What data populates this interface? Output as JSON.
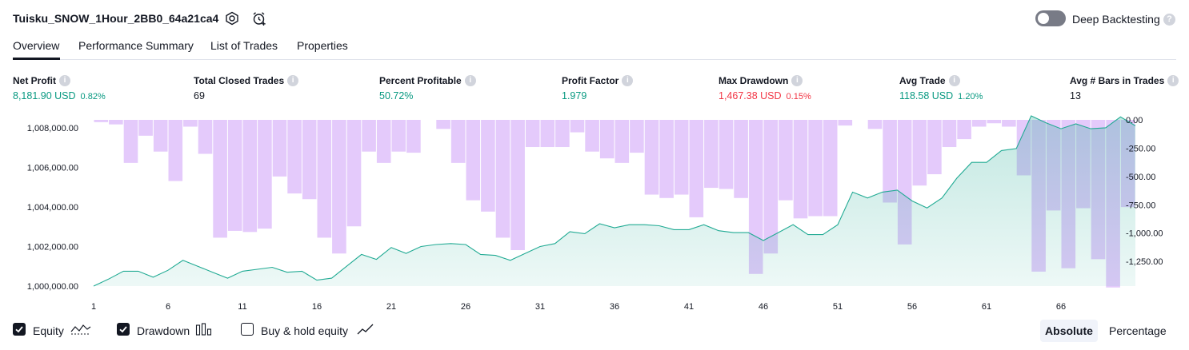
{
  "header": {
    "strategy_title": "Tuisku_SNOW_1Hour_2BB0_64a21ca4",
    "deep_backtesting_label": "Deep Backtesting",
    "deep_backtesting_enabled": false
  },
  "tabs": [
    {
      "label": "Overview",
      "active": true
    },
    {
      "label": "Performance Summary",
      "active": false
    },
    {
      "label": "List of Trades",
      "active": false
    },
    {
      "label": "Properties",
      "active": false
    }
  ],
  "stats": [
    {
      "label": "Net Profit",
      "value": "8,181.90 USD",
      "pct": "0.82%",
      "tone": "green"
    },
    {
      "label": "Total Closed Trades",
      "value": "69",
      "pct": "",
      "tone": "dark"
    },
    {
      "label": "Percent Profitable",
      "value": "50.72%",
      "pct": "",
      "tone": "green"
    },
    {
      "label": "Profit Factor",
      "value": "1.979",
      "pct": "",
      "tone": "green"
    },
    {
      "label": "Max Drawdown",
      "value": "1,467.38 USD",
      "pct": "0.15%",
      "tone": "red"
    },
    {
      "label": "Avg Trade",
      "value": "118.58 USD",
      "pct": "1.20%",
      "tone": "green"
    },
    {
      "label": "Avg # Bars in Trades",
      "value": "13",
      "pct": "",
      "tone": "dark"
    }
  ],
  "footer": {
    "equity_label": "Equity",
    "equity_checked": true,
    "drawdown_label": "Drawdown",
    "drawdown_checked": true,
    "buyhold_label": "Buy & hold equity",
    "buyhold_checked": false,
    "absolute_label": "Absolute",
    "percentage_label": "Percentage",
    "selected_mode": "Absolute"
  },
  "colors": {
    "equity_line": "#22ab94",
    "equity_fill": "#e3f5f0",
    "drawdown_bar": "#e1c4fb",
    "green": "#089981",
    "red": "#f23645"
  },
  "chart_data": {
    "type": "area",
    "x_tick_labels": [
      "1",
      "6",
      "11",
      "16",
      "21",
      "26",
      "31",
      "36",
      "41",
      "46",
      "51",
      "56",
      "61",
      "66"
    ],
    "left_axis_labels": [
      "1,008,000.00",
      "1,006,000.00",
      "1,004,000.00",
      "1,002,000.00",
      "1,000,000.00"
    ],
    "right_axis_labels": [
      "0.00",
      "-250.00",
      "-500.00",
      "-750.00",
      "-1,000.00",
      "-1,250.00"
    ],
    "left_ylim": [
      1000000,
      1008400
    ],
    "right_ylim": [
      -1467.38,
      0
    ],
    "series": [
      {
        "name": "Equity",
        "axis": "left",
        "values": [
          1000000,
          1000350,
          1000750,
          1000750,
          1000450,
          1000800,
          1001300,
          1001000,
          1000700,
          1000400,
          1000750,
          1000850,
          1000950,
          1000700,
          1000750,
          1000300,
          1000400,
          1001000,
          1001600,
          1001350,
          1001950,
          1001650,
          1002000,
          1002100,
          1002150,
          1002100,
          1001600,
          1001550,
          1001300,
          1001650,
          1002000,
          1002150,
          1002750,
          1002650,
          1003150,
          1002950,
          1003100,
          1003100,
          1003050,
          1002850,
          1002850,
          1003100,
          1002800,
          1002700,
          1002700,
          1002300,
          1002700,
          1003100,
          1002600,
          1002600,
          1003100,
          1004750,
          1004450,
          1004750,
          1004850,
          1004300,
          1003950,
          1004450,
          1005450,
          1006250,
          1006250,
          1006850,
          1006950,
          1008600,
          1008250,
          1007950,
          1008200,
          1007950,
          1008000,
          1008550,
          1008100
        ]
      },
      {
        "name": "Drawdown",
        "axis": "right",
        "values": [
          -20,
          -40,
          -380,
          -140,
          -280,
          -540,
          -60,
          -300,
          -1040,
          -980,
          -990,
          -960,
          -500,
          -650,
          -700,
          -1040,
          -1180,
          -940,
          -280,
          -380,
          -280,
          -290,
          0,
          -80,
          -380,
          -710,
          -810,
          -1040,
          -1150,
          -240,
          -240,
          -240,
          -110,
          -280,
          -340,
          -380,
          -290,
          -660,
          -690,
          -660,
          -860,
          -600,
          -610,
          -690,
          -1360,
          -1180,
          -710,
          -870,
          -850,
          -850,
          -50,
          0,
          -80,
          -730,
          -1100,
          -580,
          -480,
          -240,
          -170,
          -60,
          -30,
          -60,
          -490,
          -1340,
          -800,
          -1310,
          -780,
          -1230,
          -1480,
          -770
        ]
      }
    ]
  }
}
